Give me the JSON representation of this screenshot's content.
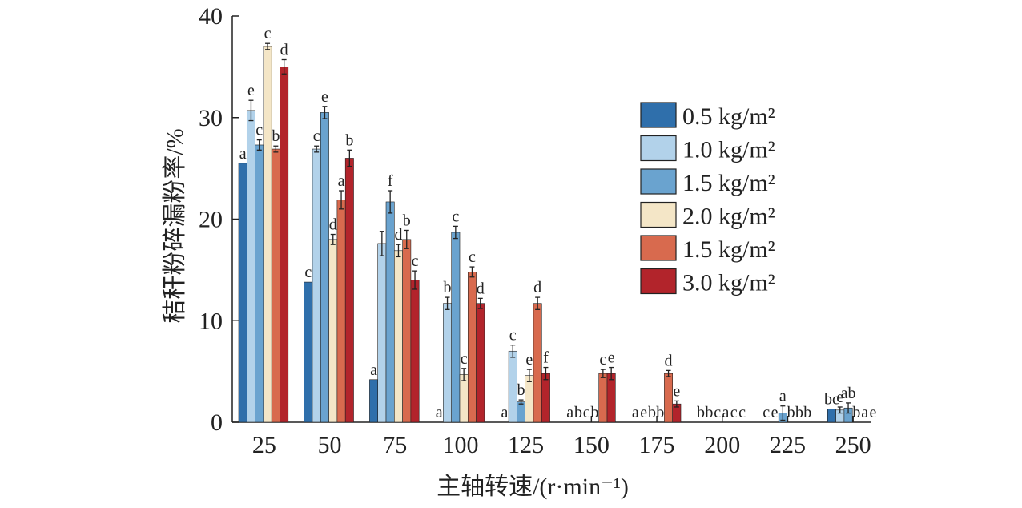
{
  "chart_data": {
    "type": "bar",
    "xlabel": "主轴转速/(r·min⁻¹)",
    "ylabel": "秸秆粉碎漏粉率/%",
    "ylim": [
      0,
      40
    ],
    "yticks": [
      "0",
      "10",
      "20",
      "30",
      "40"
    ],
    "categories": [
      "25",
      "50",
      "75",
      "100",
      "125",
      "150",
      "175",
      "200",
      "225",
      "250"
    ],
    "legend_position": "right",
    "series": [
      {
        "name": "0.5 kg/m²",
        "color": "#2f6fab",
        "values": [
          25.5,
          13.8,
          4.2,
          0,
          0,
          0,
          0,
          0,
          0,
          1.3
        ],
        "errors": [
          0,
          0,
          0,
          0,
          0,
          0,
          0,
          0,
          0,
          0
        ],
        "letters": [
          "a",
          "c",
          "a",
          "a",
          "a",
          "a",
          "a",
          "b",
          "c",
          "bc"
        ]
      },
      {
        "name": "1.0 kg/m²",
        "color": "#b2d2ea",
        "values": [
          30.7,
          26.9,
          17.6,
          11.7,
          7.0,
          0,
          0,
          0,
          0,
          1.2
        ],
        "errors": [
          1.0,
          0.3,
          1.2,
          0.6,
          0.6,
          0,
          0,
          0,
          0,
          0.3
        ],
        "letters": [
          "e",
          "c",
          "",
          "b",
          "c",
          "b",
          "e",
          "b",
          "e",
          "e"
        ]
      },
      {
        "name": "1.5 kg/m²",
        "color": "#6aa3cf",
        "values": [
          27.3,
          30.5,
          21.7,
          18.7,
          2.0,
          0,
          0,
          0,
          0.9,
          1.4
        ],
        "errors": [
          0.5,
          0.6,
          1.1,
          0.6,
          0.2,
          0,
          0,
          0,
          0.7,
          0.5
        ],
        "letters": [
          "c",
          "e",
          "f",
          "c",
          "b",
          "c",
          "b",
          "c",
          "a",
          "ab"
        ]
      },
      {
        "name": "2.0 kg/m²",
        "color": "#f4e6c7",
        "values": [
          37.0,
          18.0,
          16.9,
          4.7,
          4.6,
          0,
          0,
          0,
          0,
          0
        ],
        "errors": [
          0.3,
          0.5,
          0.6,
          0.6,
          0.6,
          0,
          0,
          0,
          0,
          0
        ],
        "letters": [
          "c",
          "d",
          "d",
          "c",
          "e",
          "b",
          "b",
          "a",
          "b",
          "b"
        ]
      },
      {
        "name": "1.5 kg/m²",
        "color": "#d86a4e",
        "values": [
          26.9,
          21.9,
          18.0,
          14.8,
          11.7,
          4.8,
          4.8,
          0,
          0,
          0
        ],
        "errors": [
          0.3,
          0.9,
          0.9,
          0.5,
          0.6,
          0.4,
          0.3,
          0,
          0,
          0
        ],
        "letters": [
          "b",
          "a",
          "b",
          "c",
          "d",
          "c",
          "d",
          "c",
          "b",
          "a"
        ]
      },
      {
        "name": "3.0 kg/m²",
        "color": "#b2242b",
        "values": [
          35.0,
          26.0,
          14.0,
          11.7,
          4.8,
          4.8,
          1.8,
          0,
          0,
          0
        ],
        "errors": [
          0.7,
          0.8,
          0.9,
          0.5,
          0.6,
          0.6,
          0.3,
          0,
          0,
          0
        ],
        "letters": [
          "d",
          "b",
          "c",
          "d",
          "f",
          "e",
          "e",
          "c",
          "b",
          "e"
        ]
      }
    ]
  }
}
